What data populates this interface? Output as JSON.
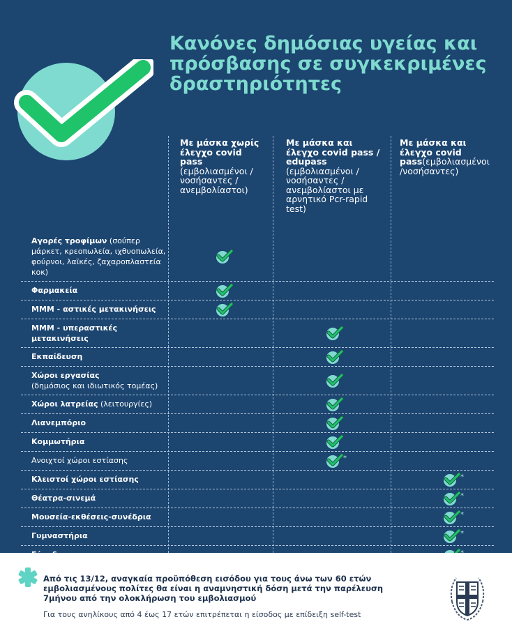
{
  "title": "Κανόνες δημόσιας υγείας και πρόσβασης σε συγκεκριμένες δραστηριότητες",
  "colors": {
    "background": "#1c4570",
    "accent": "#7fdbd0",
    "check": "#1fc36a"
  },
  "columns": [
    {
      "bold": "Με μάσκα χωρίς έλεγχο covid pass",
      "normal": "(εμβολιασμένοι / νοσήσαντες / ανεμβολίαστοι)"
    },
    {
      "bold": "Με μάσκα και έλεγχο covid pass / edupass",
      "normal": "(εμβολιασμένοι / νοσήσαντες / ανεμβολίαστοι με αρνητικό Pcr-rapid test)"
    },
    {
      "bold": "Με μάσκα και έλεγχο covid pass",
      "normal": "(εμβολιασμένοι /νοσήσαντες)"
    }
  ],
  "rows": [
    {
      "label": "Αγορές τροφίμων",
      "sub": " (σούπερ μάρκετ, κρεοπωλεία, ιχθυοπωλεία, φούρνοι, λαϊκές, ζαχαροπλαστεία κοκ)",
      "column": 1,
      "asterisk": false
    },
    {
      "label": "Φαρμακεία",
      "sub": "",
      "column": 1,
      "asterisk": false
    },
    {
      "label": "ΜΜΜ - αστικές μετακινήσεις",
      "sub": "",
      "column": 1,
      "asterisk": false
    },
    {
      "label": "ΜΜΜ - υπεραστικές μετακινήσεις",
      "sub": "",
      "column": 2,
      "asterisk": false
    },
    {
      "label": "Εκπαίδευση",
      "sub": "",
      "column": 2,
      "asterisk": false
    },
    {
      "label": "Χώροι εργασίας",
      "sub": "(δημόσιος και ιδιωτικός τομέας)",
      "column": 2,
      "asterisk": false,
      "sub_newline": true
    },
    {
      "label": "Χώροι λατρείας",
      "sub": " (λειτουργίες)",
      "column": 2,
      "asterisk": false
    },
    {
      "label": "Λιανεμπόριο",
      "sub": "",
      "column": 2,
      "asterisk": false
    },
    {
      "label": "Κομμωτήρια",
      "sub": "",
      "column": 2,
      "asterisk": false
    },
    {
      "label": "",
      "sub": "Ανοιχτοί χώροι εστίασης",
      "column": 2,
      "asterisk": true
    },
    {
      "label": "Κλειστοί χώροι εστίασης",
      "sub": "",
      "column": 3,
      "asterisk": true
    },
    {
      "label": "Θέατρα-σινεμά",
      "sub": "",
      "column": 3,
      "asterisk": true
    },
    {
      "label": "Μουσεία-εκθέσεις-συνέδρια",
      "sub": "",
      "column": 3,
      "asterisk": true
    },
    {
      "label": "Γυμναστήρια",
      "sub": "",
      "column": 3,
      "asterisk": true
    },
    {
      "label": "Γήπεδα",
      "sub": "",
      "column": 3,
      "asterisk": true
    }
  ],
  "footer": {
    "note": "Από τις 13/12, αναγκαία προϋπόθεση εισόδου για τους άνω των 60 ετών εμβολιασμένους πολίτες θα είναι η αναμνηστική δόση μετά την παρέλευση 7μήνου από την ολοκλήρωση του εμβολιασμού",
    "minors": "Για τους ανηλίκους από 4 έως 17 ετών επιτρέπεται η είσοδος με επίδειξη self-test"
  }
}
